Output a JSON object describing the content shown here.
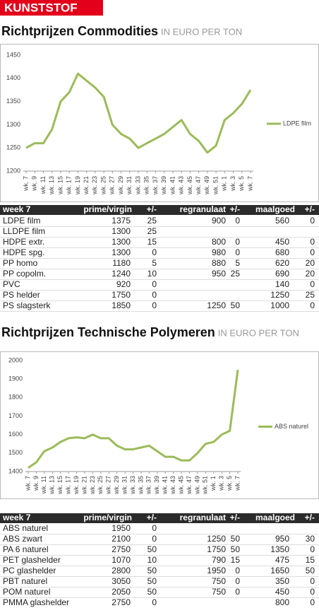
{
  "header": {
    "section": "KUNSTSTOF"
  },
  "chart_data": [
    {
      "type": "line",
      "title": "Richtprijzen Commodities",
      "subtitle": "IN EURO PER TON",
      "categories": [
        "wk. 7",
        "wk. 9",
        "wk. 11",
        "wk. 13",
        "wk. 15",
        "wk. 17",
        "wk. 19",
        "wk. 21",
        "wk. 23",
        "wk. 25",
        "wk. 27",
        "wk. 29",
        "wk. 31",
        "wk. 33",
        "wk. 35",
        "wk. 37",
        "wk. 39",
        "wk. 41",
        "wk. 43",
        "wk. 45",
        "wk. 47",
        "wk. 49",
        "wk. 51",
        "wk. 1",
        "wk. 3",
        "wk. 5",
        "wk. 7"
      ],
      "series": [
        {
          "name": "LDPE film",
          "color": "#9bbb59",
          "values": [
            1250,
            1260,
            1260,
            1290,
            1350,
            1370,
            1410,
            1395,
            1380,
            1360,
            1300,
            1280,
            1270,
            1250,
            1260,
            1270,
            1280,
            1295,
            1310,
            1280,
            1265,
            1240,
            1255,
            1310,
            1325,
            1345,
            1375
          ]
        }
      ],
      "ylim": [
        1200,
        1450
      ],
      "yticks": [
        1200,
        1250,
        1300,
        1350,
        1400,
        1450
      ],
      "grid": false,
      "legend": "right"
    },
    {
      "type": "line",
      "title": "Richtprijzen Technische Polymeren",
      "subtitle": "IN EURO PER TON",
      "categories": [
        "wk. 7",
        "wk. 9",
        "wk. 11",
        "wk. 13",
        "wk. 15",
        "wk. 17",
        "wk. 19",
        "wk. 21",
        "wk. 23",
        "wk. 25",
        "wk. 27",
        "wk. 29",
        "wk. 31",
        "wk. 33",
        "wk. 35",
        "wk. 37",
        "wk. 39",
        "wk. 41",
        "wk. 43",
        "wk. 45",
        "wk. 47",
        "wk. 49",
        "wk. 51",
        "wk. 1",
        "wk. 3",
        "wk. 5",
        "wk. 7"
      ],
      "series": [
        {
          "name": "ABS naturel",
          "color": "#9bbb59",
          "values": [
            1420,
            1450,
            1510,
            1530,
            1560,
            1580,
            1585,
            1580,
            1600,
            1580,
            1580,
            1540,
            1520,
            1520,
            1530,
            1540,
            1510,
            1480,
            1480,
            1460,
            1460,
            1500,
            1550,
            1560,
            1600,
            1620,
            1950
          ]
        }
      ],
      "ylim": [
        1400,
        2000
      ],
      "yticks": [
        1400,
        1500,
        1600,
        1700,
        1800,
        1900,
        2000
      ],
      "grid": false,
      "legend": "right"
    }
  ],
  "tables": [
    {
      "columns": [
        "week 7",
        "prime/virgin",
        "+/-",
        "regranulaat",
        "+/-",
        "maalgoed",
        "+/-"
      ],
      "rows": [
        [
          "LDPE film",
          1375,
          25,
          900,
          0,
          560,
          0
        ],
        [
          "LLDPE film",
          1300,
          25,
          null,
          null,
          null,
          null
        ],
        [
          "HDPE extr.",
          1300,
          15,
          800,
          0,
          450,
          0
        ],
        [
          "HDPE spg.",
          1300,
          0,
          980,
          0,
          680,
          0
        ],
        [
          "PP homo",
          1180,
          5,
          880,
          5,
          620,
          20
        ],
        [
          "PP copolm.",
          1240,
          10,
          950,
          25,
          690,
          20
        ],
        [
          "PVC",
          920,
          0,
          null,
          null,
          140,
          0
        ],
        [
          "PS helder",
          1750,
          0,
          null,
          null,
          1250,
          25
        ],
        [
          "PS slagsterk",
          1850,
          0,
          1250,
          50,
          1000,
          0
        ]
      ]
    },
    {
      "columns": [
        "week 7",
        "prime/virgin",
        "+/-",
        "regranulaat",
        "+/-",
        "maalgoed",
        "+/-"
      ],
      "rows": [
        [
          "ABS naturel",
          1950,
          0,
          null,
          null,
          null,
          null
        ],
        [
          "ABS zwart",
          2100,
          0,
          1250,
          50,
          950,
          30
        ],
        [
          "PA 6 naturel",
          2750,
          50,
          1750,
          50,
          1350,
          0
        ],
        [
          "PET glashelder",
          1070,
          10,
          790,
          15,
          475,
          15
        ],
        [
          "PC glashelder",
          2800,
          50,
          1950,
          0,
          1650,
          50
        ],
        [
          "PBT naturel",
          3050,
          50,
          750,
          0,
          350,
          0
        ],
        [
          "POM naturel",
          2050,
          50,
          750,
          0,
          450,
          0
        ],
        [
          "PMMA glashelder",
          2750,
          0,
          null,
          null,
          800,
          0
        ]
      ]
    }
  ]
}
